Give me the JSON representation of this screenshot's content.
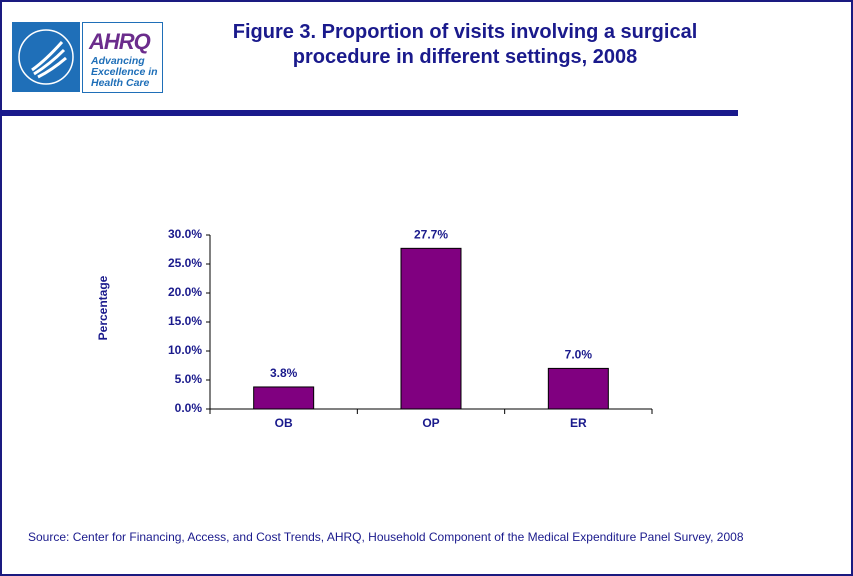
{
  "logo": {
    "name": "AHRQ",
    "tagline": "Advancing Excellence in Health Care"
  },
  "chart_data": {
    "type": "bar",
    "title": "Figure 3. Proportion of visits involving a surgical procedure in different settings, 2008",
    "y_label": "Percentage",
    "categories": [
      "OB",
      "OP",
      "ER"
    ],
    "values": [
      3.8,
      27.7,
      7.0
    ],
    "value_labels": [
      "3.8%",
      "27.7%",
      "7.0%"
    ],
    "color": "#800080",
    "ylim": [
      0,
      30
    ],
    "yticks": [
      {
        "value": 0,
        "label": "0.0%"
      },
      {
        "value": 5,
        "label": "5.0%"
      },
      {
        "value": 10,
        "label": "10.0%"
      },
      {
        "value": 15,
        "label": "15.0%"
      },
      {
        "value": 20,
        "label": "20.0%"
      },
      {
        "value": 25,
        "label": "25.0%"
      },
      {
        "value": 30,
        "label": "30.0%"
      }
    ],
    "source": "Source: Center for Financing, Access, and Cost Trends, AHRQ, Household Component of the Medical Expenditure Panel Survey, 2008"
  }
}
